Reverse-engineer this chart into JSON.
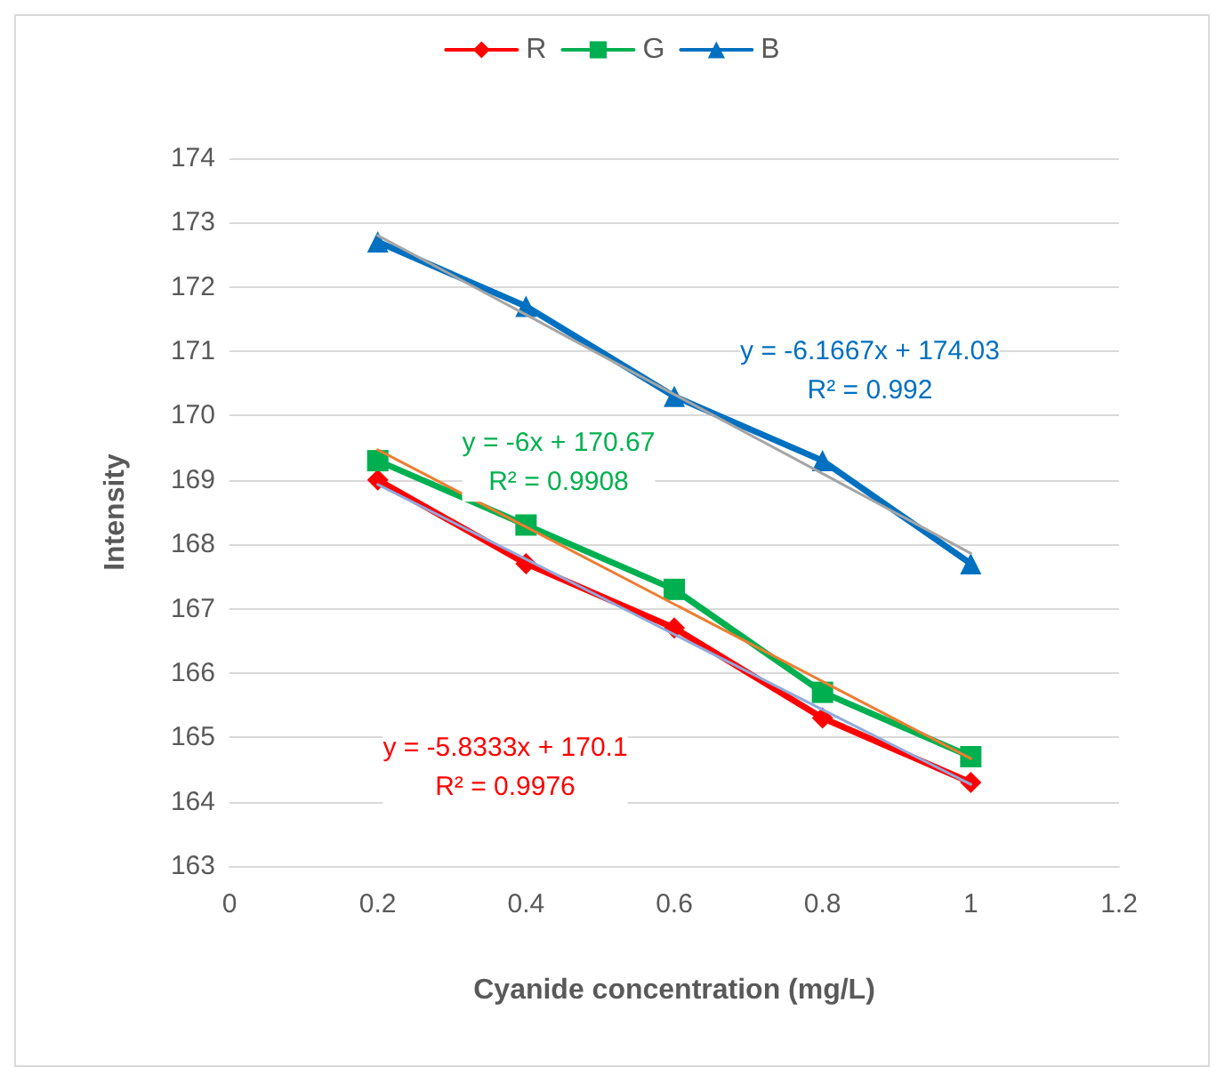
{
  "chart_data": {
    "type": "line",
    "xlabel": "Cyanide concentration (mg/L)",
    "ylabel": "Intensity",
    "x": [
      0.2,
      0.4,
      0.6,
      0.8,
      1
    ],
    "series": [
      {
        "name": "R",
        "color": "#ff0000",
        "marker": "diamond",
        "values": [
          169.0,
          167.7,
          166.7,
          165.3,
          164.3
        ]
      },
      {
        "name": "G",
        "color": "#00b050",
        "marker": "square",
        "values": [
          169.3,
          168.3,
          167.3,
          165.7,
          164.7
        ]
      },
      {
        "name": "B",
        "color": "#0070c0",
        "marker": "triangle",
        "values": [
          172.7,
          171.7,
          170.3,
          169.3,
          167.7
        ]
      },
      {
        "type": "line",
        "color": "#8faadc",
        "marker": "none",
        "values": [
          168.93,
          167.77,
          166.6,
          165.43,
          164.27
        ]
      },
      {
        "type": "line",
        "color": "#ed7d31",
        "marker": "none",
        "values": [
          169.47,
          168.27,
          167.07,
          165.87,
          164.67
        ]
      },
      {
        "type": "line",
        "color": "#a5a5a5",
        "marker": "none",
        "values": [
          172.8,
          171.57,
          170.33,
          169.1,
          167.86
        ]
      }
    ],
    "annotations": [
      "y = -5.8333x + 170.1\nR² = 0.9976",
      "y = -6x + 170.67\nR² = 0.9908",
      "y = -6.1667x + 174.03\nR² = 0.992"
    ],
    "xlim": [
      0,
      1.2
    ],
    "xticks": [
      0,
      0.2,
      0.4,
      0.6,
      0.8,
      1,
      1.2
    ],
    "ylim": [
      163,
      174
    ],
    "yticks": [
      163,
      164,
      165,
      166,
      167,
      168,
      169,
      170,
      171,
      172,
      173,
      174
    ],
    "grid": "y",
    "legend": "top"
  }
}
